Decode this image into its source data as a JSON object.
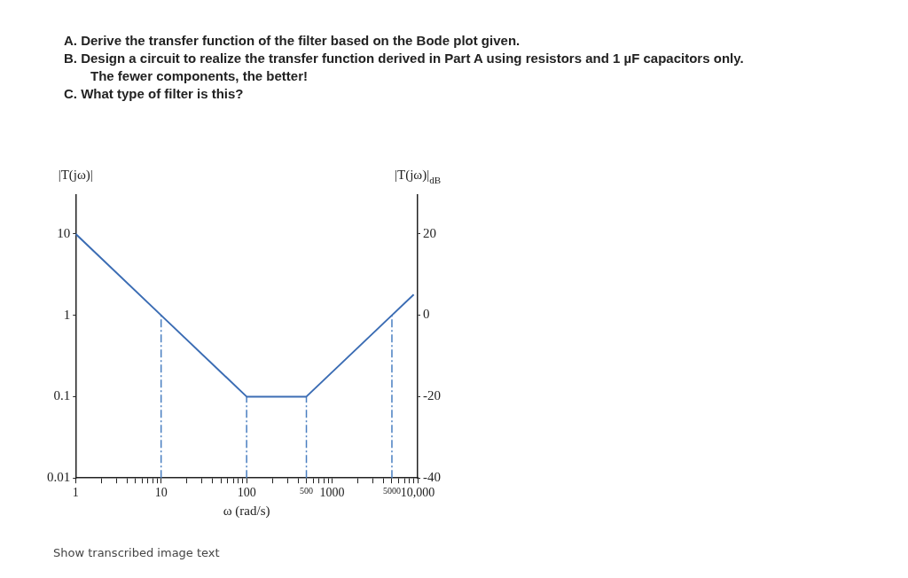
{
  "chart_data": {
    "type": "line",
    "annotations": [
      "A. Derive the transfer function of the filter based on the Bode plot given.",
      "B. Design a circuit to realize the transfer function derived in Part A using resistors and 1 µF capacitors only. The fewer components, the better!",
      "C. What type of filter is this?",
      "Show transcribed image text"
    ],
    "xlabel": "ω (rad/s)",
    "ylabel": "|T(jω)|",
    "y2label": "|T(jω)|$_{dB}$",
    "log": "xy",
    "series": [
      {
        "color": "#3c6db4",
        "x": [
          1,
          10,
          100,
          500,
          5000,
          9000
        ],
        "values": [
          10,
          1,
          0.1,
          0.1,
          1,
          1.8
        ]
      }
    ],
    "xlim": [
      1,
      10000
    ],
    "xticks": [
      1,
      {
        "value": 2,
        "label": null
      },
      {
        "value": 3,
        "label": null
      },
      {
        "value": 4,
        "label": null
      },
      {
        "value": 5,
        "label": null
      },
      {
        "value": 6,
        "label": null
      },
      {
        "value": 7,
        "label": null
      },
      {
        "value": 8,
        "label": null
      },
      {
        "value": 9,
        "label": null
      },
      10,
      {
        "value": 20,
        "label": null
      },
      {
        "value": 30,
        "label": null
      },
      {
        "value": 40,
        "label": null
      },
      {
        "value": 50,
        "label": null
      },
      {
        "value": 60,
        "label": null
      },
      {
        "value": 70,
        "label": null
      },
      {
        "value": 80,
        "label": null
      },
      {
        "value": 90,
        "label": null
      },
      100,
      {
        "value": 200,
        "label": null
      },
      {
        "value": 300,
        "label": null
      },
      {
        "value": 400,
        "label": null
      },
      500,
      {
        "value": 600,
        "label": null
      },
      {
        "value": 700,
        "label": null
      },
      {
        "value": 800,
        "label": null
      },
      {
        "value": 900,
        "label": null
      },
      1000,
      {
        "value": 2000,
        "label": null
      },
      {
        "value": 3000,
        "label": null
      },
      {
        "value": 4000,
        "label": null
      },
      5000,
      {
        "value": 6000,
        "label": null
      },
      {
        "value": 7000,
        "label": null
      },
      {
        "value": 8000,
        "label": null
      },
      {
        "value": 9000,
        "label": null
      },
      {
        "value": 10000,
        "label": "10,000"
      }
    ],
    "ylim": [
      0.01,
      30
    ],
    "yticks": [
      0.01,
      0.1,
      1,
      10
    ],
    "y2lim": [
      -40,
      29.5
    ],
    "y2ticks": [
      -40,
      -20,
      0,
      20
    ],
    "ref_lines": [
      {
        "axis": "x",
        "value": 10,
        "color": "#4a7fc1",
        "line_style": "dashdot"
      },
      {
        "axis": "x",
        "value": 100,
        "color": "#4a7fc1",
        "line_style": "dashdot"
      },
      {
        "axis": "x",
        "value": 500,
        "color": "#4a7fc1",
        "line_style": "dashdot"
      },
      {
        "axis": "x",
        "value": 5000,
        "color": "#4a7fc1",
        "line_style": "dashdot"
      }
    ],
    "grid": false,
    "legend": false,
    "marker": "none",
    "line_style": "solid"
  }
}
